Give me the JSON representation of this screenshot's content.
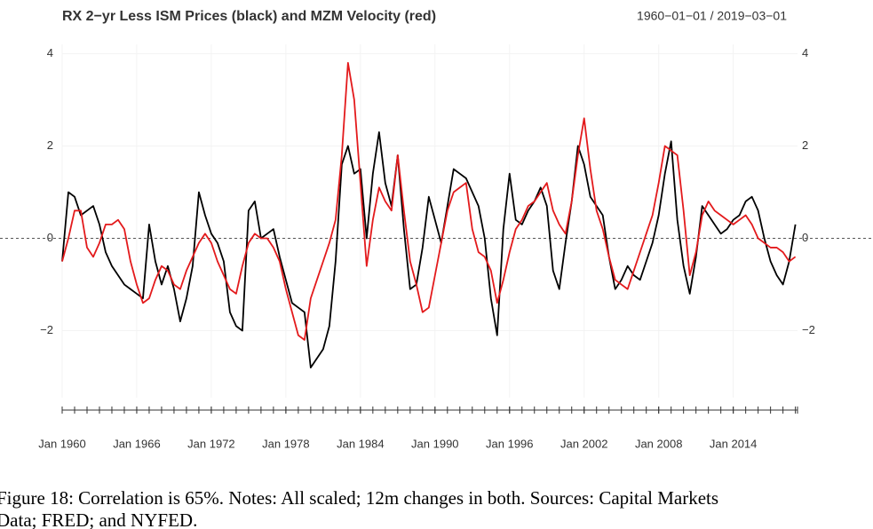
{
  "chart_data": {
    "type": "line",
    "title": "RX 2−yr Less ISM Prices (black) and MZM Velocity (red)",
    "subtitle": "1960−01−01 / 2019−03−01",
    "caption": [
      "Figure 18: Correlation is 65%. Notes: All scaled; 12m changes in both. Sources: Capital Markets",
      "Data; FRED; and NYFED."
    ],
    "x": [
      1960,
      1960.5,
      1961,
      1961.5,
      1962,
      1962.5,
      1963,
      1963.5,
      1964,
      1964.5,
      1965,
      1965.5,
      1966,
      1966.5,
      1967,
      1967.5,
      1968,
      1968.5,
      1969,
      1969.5,
      1970,
      1970.5,
      1971,
      1971.5,
      1972,
      1972.5,
      1973,
      1973.5,
      1974,
      1974.5,
      1975,
      1975.5,
      1976,
      1976.5,
      1977,
      1977.5,
      1978,
      1978.5,
      1979,
      1979.5,
      1980,
      1980.5,
      1981,
      1981.5,
      1982,
      1982.5,
      1983,
      1983.5,
      1984,
      1984.5,
      1985,
      1985.5,
      1986,
      1986.5,
      1987,
      1987.5,
      1988,
      1988.5,
      1989,
      1989.5,
      1990,
      1990.5,
      1991,
      1991.5,
      1992,
      1992.5,
      1993,
      1993.5,
      1994,
      1994.5,
      1995,
      1995.5,
      1996,
      1996.5,
      1997,
      1997.5,
      1998,
      1998.5,
      1999,
      1999.5,
      2000,
      2000.5,
      2001,
      2001.5,
      2002,
      2002.5,
      2003,
      2003.5,
      2004,
      2004.5,
      2005,
      2005.5,
      2006,
      2006.5,
      2007,
      2007.5,
      2008,
      2008.5,
      2009,
      2009.5,
      2010,
      2010.5,
      2011,
      2011.5,
      2012,
      2012.5,
      2013,
      2013.5,
      2014,
      2014.5,
      2015,
      2015.5,
      2016,
      2016.5,
      2017,
      2017.5,
      2018,
      2018.5,
      2019
    ],
    "series": [
      {
        "color": "#000000",
        "values": [
          -0.5,
          1.0,
          0.9,
          0.5,
          0.6,
          0.7,
          0.3,
          -0.3,
          -0.6,
          -0.8,
          -1.0,
          -1.1,
          -1.2,
          -1.3,
          0.3,
          -0.5,
          -1.0,
          -0.6,
          -1.1,
          -1.8,
          -1.3,
          -0.6,
          1.0,
          0.5,
          0.1,
          -0.1,
          -0.5,
          -1.6,
          -1.9,
          -2.0,
          0.6,
          0.8,
          0.0,
          0.1,
          0.2,
          -0.4,
          -0.9,
          -1.4,
          -1.5,
          -1.6,
          -2.8,
          -2.6,
          -2.4,
          -1.9,
          -0.5,
          1.6,
          2.0,
          1.4,
          1.5,
          0.0,
          1.4,
          2.3,
          1.2,
          0.7,
          1.8,
          0.2,
          -1.1,
          -1.0,
          -0.2,
          0.9,
          0.4,
          -0.1,
          0.7,
          1.5,
          1.4,
          1.3,
          1.0,
          0.7,
          0.0,
          -1.3,
          -2.1,
          0.2,
          1.4,
          0.4,
          0.3,
          0.6,
          0.8,
          1.1,
          0.7,
          -0.7,
          -1.1,
          -0.1,
          0.8,
          2.0,
          1.6,
          0.9,
          0.7,
          0.5,
          -0.4,
          -1.1,
          -0.9,
          -0.6,
          -0.8,
          -0.9,
          -0.5,
          -0.1,
          0.5,
          1.4,
          2.1,
          0.4,
          -0.6,
          -1.2,
          -0.4,
          0.7,
          0.5,
          0.3,
          0.1,
          0.2,
          0.4,
          0.5,
          0.8,
          0.9,
          0.6,
          0.0,
          -0.5,
          -0.8,
          -1.0,
          -0.5,
          0.3
        ]
      },
      {
        "color": "#e31a1c",
        "values": [
          -0.5,
          0.0,
          0.6,
          0.6,
          -0.2,
          -0.4,
          -0.1,
          0.3,
          0.3,
          0.4,
          0.2,
          -0.5,
          -1.0,
          -1.4,
          -1.3,
          -0.9,
          -0.6,
          -0.7,
          -1.0,
          -1.1,
          -0.7,
          -0.4,
          -0.1,
          0.1,
          -0.1,
          -0.5,
          -0.8,
          -1.1,
          -1.2,
          -0.6,
          -0.1,
          0.1,
          0.0,
          0.0,
          -0.2,
          -0.5,
          -1.1,
          -1.6,
          -2.1,
          -2.2,
          -1.3,
          -0.9,
          -0.5,
          -0.1,
          0.4,
          1.8,
          3.8,
          3.0,
          1.2,
          -0.6,
          0.4,
          1.1,
          0.8,
          0.6,
          1.8,
          0.6,
          -0.5,
          -1.0,
          -1.6,
          -1.5,
          -0.8,
          -0.1,
          0.6,
          1.0,
          1.1,
          1.2,
          0.2,
          -0.3,
          -0.4,
          -0.7,
          -1.4,
          -0.9,
          -0.3,
          0.2,
          0.4,
          0.7,
          0.8,
          1.0,
          1.2,
          0.6,
          0.3,
          0.1,
          0.8,
          1.8,
          2.6,
          1.5,
          0.6,
          0.2,
          -0.4,
          -0.9,
          -1.0,
          -1.1,
          -0.7,
          -0.3,
          0.1,
          0.5,
          1.2,
          2.0,
          1.9,
          1.8,
          0.6,
          -0.8,
          -0.3,
          0.5,
          0.8,
          0.6,
          0.5,
          0.4,
          0.3,
          0.4,
          0.5,
          0.3,
          0.0,
          -0.1,
          -0.2,
          -0.2,
          -0.3,
          -0.5,
          -0.4
        ]
      }
    ],
    "xlim": [
      1960,
      2019.17
    ],
    "xticks": [
      {
        "value": 1960,
        "label": "Jan 1960"
      },
      {
        "value": 1966,
        "label": "Jan 1966"
      },
      {
        "value": 1972,
        "label": "Jan 1972"
      },
      {
        "value": 1978,
        "label": "Jan 1978"
      },
      {
        "value": 1984,
        "label": "Jan 1984"
      },
      {
        "value": 1990,
        "label": "Jan 1990"
      },
      {
        "value": 1996,
        "label": "Jan 1996"
      },
      {
        "value": 2002,
        "label": "Jan 2002"
      },
      {
        "value": 2008,
        "label": "Jan 2008"
      },
      {
        "value": 2014,
        "label": "Jan 2014"
      }
    ],
    "ylim": [
      -3.45,
      4.2
    ],
    "yticks": [
      {
        "value": -2,
        "label": "−2"
      },
      0,
      2,
      4
    ],
    "grid": true,
    "zero_line": true
  }
}
